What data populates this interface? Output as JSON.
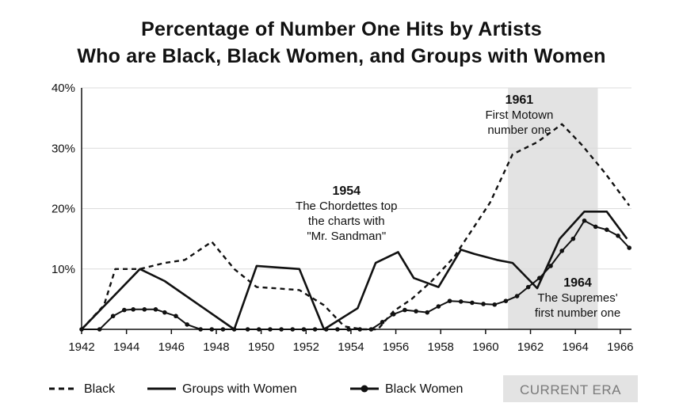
{
  "chart_data": {
    "type": "line",
    "title_line1": "Percentage of Number One Hits by Artists",
    "title_line2": "Who are Black, Black Women, and Groups with Women",
    "xlim": [
      1942,
      1966.5
    ],
    "ylim": [
      0,
      40
    ],
    "x_ticks": [
      1942,
      1944,
      1946,
      1948,
      1950,
      1952,
      1954,
      1956,
      1958,
      1960,
      1962,
      1964,
      1966
    ],
    "y_ticks": [
      {
        "value": 10,
        "label": "10%"
      },
      {
        "value": 20,
        "label": "20%"
      },
      {
        "value": 30,
        "label": "30%"
      },
      {
        "value": 40,
        "label": "40%"
      }
    ],
    "shaded_region": {
      "x_start": 1961,
      "x_end": 1965,
      "label": "CURRENT ERA",
      "color": "#e3e3e3"
    },
    "series": [
      {
        "name": "Black",
        "style": "dashed",
        "x": [
          1942,
          1943,
          1943.5,
          1944.6,
          1945.7,
          1946.6,
          1947.8,
          1948.8,
          1949.8,
          1950.6,
          1951.7,
          1952.8,
          1953.7,
          1954.5,
          1955.2,
          1955.9,
          1956.7,
          1957.6,
          1958.6,
          1959.4,
          1960.2,
          1961.2,
          1962.3,
          1963.4,
          1964.3,
          1965.3,
          1966.4
        ],
        "values": [
          0,
          4,
          10,
          10,
          11,
          11.5,
          14.5,
          10,
          7,
          6.8,
          6.5,
          4,
          0.5,
          0,
          0,
          3,
          5,
          8,
          12,
          16.5,
          21,
          29,
          31,
          34,
          30.5,
          26,
          20.5
        ]
      },
      {
        "name": "Groups with Women",
        "style": "solid",
        "x": [
          1942,
          1944.6,
          1945.7,
          1948.8,
          1949.8,
          1951.7,
          1952.8,
          1954.3,
          1955.1,
          1956.1,
          1956.8,
          1957.9,
          1958.9,
          1959.5,
          1960.5,
          1961.2,
          1962.3,
          1963.3,
          1964.4,
          1965.4,
          1966.3
        ],
        "values": [
          0,
          10,
          8,
          0,
          10.5,
          10,
          0,
          3.5,
          11,
          12.8,
          8.5,
          7,
          13.2,
          12.5,
          11.5,
          11,
          6.8,
          15,
          19.5,
          19.5,
          15
        ]
      },
      {
        "name": "Black Women",
        "style": "solid-markers",
        "x": [
          1942,
          1942.8,
          1943.4,
          1943.9,
          1944.3,
          1944.8,
          1945.3,
          1945.7,
          1946.2,
          1946.7,
          1947.3,
          1947.8,
          1948.3,
          1948.8,
          1949.4,
          1949.9,
          1950.4,
          1950.9,
          1951.4,
          1951.9,
          1952.4,
          1952.9,
          1953.4,
          1953.9,
          1954.4,
          1954.9,
          1955.4,
          1955.9,
          1956.4,
          1956.9,
          1957.4,
          1957.9,
          1958.4,
          1958.9,
          1959.4,
          1959.9,
          1960.4,
          1960.9,
          1961.4,
          1961.9,
          1962.4,
          1962.9,
          1963.4,
          1963.9,
          1964.4,
          1964.9,
          1965.4,
          1965.9,
          1966.4
        ],
        "values": [
          0,
          0,
          2.2,
          3.2,
          3.3,
          3.3,
          3.3,
          2.8,
          2.2,
          0.8,
          0,
          0,
          0,
          0,
          0,
          0,
          0,
          0,
          0,
          0,
          0,
          0,
          0,
          0,
          0,
          0,
          1.2,
          2.5,
          3.2,
          3,
          2.8,
          3.8,
          4.7,
          4.6,
          4.4,
          4.2,
          4.1,
          4.7,
          5.5,
          7,
          8.5,
          10.5,
          13,
          15,
          18,
          17,
          16.5,
          15.5,
          13.5
        ]
      }
    ],
    "annotations": [
      {
        "id": "1961",
        "year": 1961.5,
        "title": "1961",
        "lines": [
          "First Motown",
          "number one"
        ]
      },
      {
        "id": "1954",
        "year": 1954,
        "title": "1954",
        "lines": [
          "The Chordettes top",
          "the charts with",
          "\"Mr. Sandman\""
        ]
      },
      {
        "id": "1964",
        "year": 1964,
        "title": "1964",
        "lines": [
          "The Supremes'",
          "first number one"
        ]
      }
    ],
    "legend": [
      {
        "name": "Black",
        "style": "dashed"
      },
      {
        "name": "Groups with Women",
        "style": "solid"
      },
      {
        "name": "Black Women",
        "style": "solid-markers"
      }
    ]
  }
}
